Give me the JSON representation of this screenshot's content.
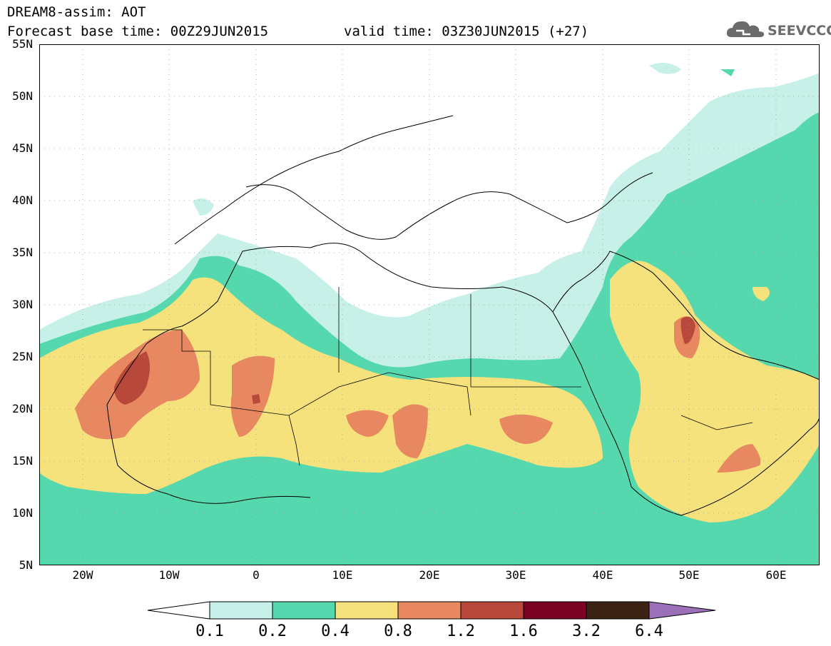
{
  "header": {
    "title": "DREAM8-assim: AOT",
    "base_time": "Forecast base time: 00Z29JUN2015",
    "valid_time": "valid time: 03Z30JUN2015 (+27)"
  },
  "logo": {
    "text": "SEEVCCC",
    "icon": "cloud-logo-icon"
  },
  "map": {
    "variable": "AOT",
    "lon_range": [
      -25,
      65
    ],
    "lat_range": [
      5,
      55
    ],
    "grid": "dotted",
    "lat_ticks": [
      "55N",
      "50N",
      "45N",
      "40N",
      "35N",
      "30N",
      "25N",
      "20N",
      "15N",
      "10N",
      "5N"
    ],
    "lon_ticks": [
      "20W",
      "10W",
      "0",
      "10E",
      "20E",
      "30E",
      "40E",
      "50E",
      "60E"
    ]
  },
  "colorbar": {
    "labels": [
      "0.1",
      "0.2",
      "0.4",
      "0.8",
      "1.2",
      "1.6",
      "3.2",
      "6.4"
    ],
    "colors": [
      "#ffffff",
      "#c6f0e8",
      "#55d8ae",
      "#f6e27c",
      "#e88860",
      "#b8483a",
      "#7a0024",
      "#3b2212",
      "#9a70b8"
    ]
  }
}
